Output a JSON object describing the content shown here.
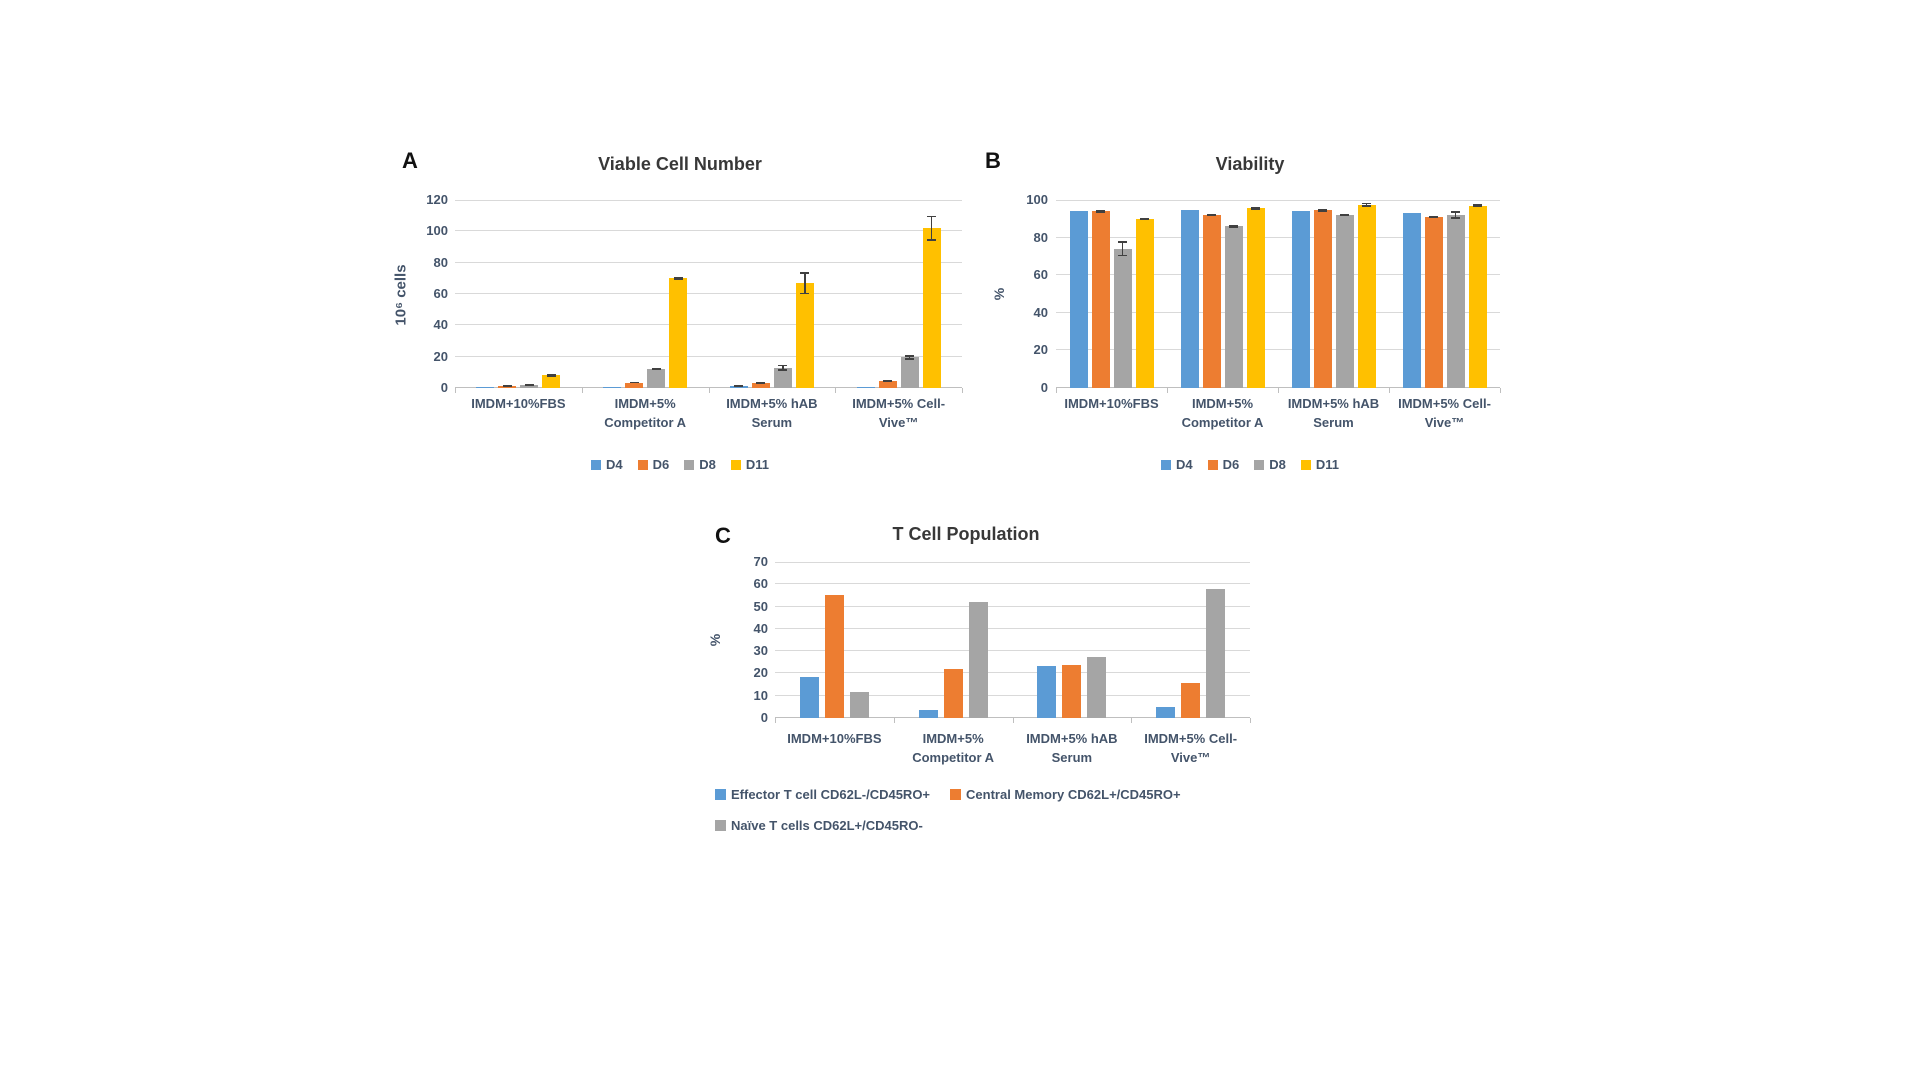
{
  "figure": {
    "background": "#ffffff",
    "palette": {
      "d4_blue": "#5B9BD5",
      "d6_orange": "#ED7D31",
      "d8_gray": "#A5A5A5",
      "d11_yellow": "#FFC000",
      "gridline": "#D9D9D9",
      "axis_line": "#BFBFBF",
      "axis_text": "#44546A",
      "title_text": "#383838",
      "error_bar": "#404040"
    }
  },
  "chart_data": [
    {
      "type": "bar",
      "panel_label": "A",
      "title": "Viable Cell Number",
      "ylabel": "10⁶ cells",
      "xlabel": "",
      "ylim": [
        0,
        120
      ],
      "ytick_step": 20,
      "yticks": [
        0,
        20,
        40,
        60,
        80,
        100,
        120
      ],
      "grid": "horizontal",
      "legend_position": "bottom-center",
      "legend_items_per_row": 4,
      "categories": [
        "IMDM+10%FBS",
        "IMDM+5% Competitor A",
        "IMDM+5% hAB Serum",
        "IMDM+5% Cell-Vive™"
      ],
      "series": [
        {
          "name": "D4",
          "color": "#5B9BD5",
          "values": [
            0.8,
            0.9,
            1.2,
            0.8
          ],
          "errors": [
            0,
            0,
            0.3,
            0
          ]
        },
        {
          "name": "D6",
          "color": "#ED7D31",
          "values": [
            1.2,
            3.5,
            3,
            4.5
          ],
          "errors": [
            0.4,
            0.4,
            0.4,
            0.5
          ]
        },
        {
          "name": "D8",
          "color": "#A5A5A5",
          "values": [
            2,
            12,
            13,
            19.5
          ],
          "errors": [
            0.4,
            0.6,
            2,
            1.5
          ]
        },
        {
          "name": "D11",
          "color": "#FFC000",
          "values": [
            8,
            70,
            67,
            102
          ],
          "errors": [
            0.8,
            1,
            7,
            8
          ]
        }
      ]
    },
    {
      "type": "bar",
      "panel_label": "B",
      "title": "Viability",
      "ylabel": "%",
      "xlabel": "",
      "ylim": [
        0,
        100
      ],
      "ytick_step": 20,
      "yticks": [
        0,
        20,
        40,
        60,
        80,
        100
      ],
      "grid": "horizontal",
      "legend_position": "bottom-center",
      "legend_items_per_row": 4,
      "categories": [
        "IMDM+10%FBS",
        "IMDM+5% Competitor A",
        "IMDM+5% hAB Serum",
        "IMDM+5% Cell-Vive™"
      ],
      "series": [
        {
          "name": "D4",
          "color": "#5B9BD5",
          "values": [
            94,
            94.5,
            94,
            93
          ],
          "errors": [
            0,
            0,
            0,
            0
          ]
        },
        {
          "name": "D6",
          "color": "#ED7D31",
          "values": [
            94,
            92,
            94.5,
            91
          ],
          "errors": [
            0.7,
            0.7,
            0.7,
            0.7
          ]
        },
        {
          "name": "D8",
          "color": "#A5A5A5",
          "values": [
            74,
            86,
            92,
            92
          ],
          "errors": [
            4,
            0.7,
            0.7,
            2
          ]
        },
        {
          "name": "D11",
          "color": "#FFC000",
          "values": [
            90,
            95.5,
            97.5,
            97
          ],
          "errors": [
            0.7,
            0.7,
            1,
            0.7
          ]
        }
      ]
    },
    {
      "type": "bar",
      "panel_label": "C",
      "title": "T Cell Population",
      "ylabel": "%",
      "xlabel": "",
      "ylim": [
        0,
        70
      ],
      "ytick_step": 10,
      "yticks": [
        0,
        10,
        20,
        30,
        40,
        50,
        60,
        70
      ],
      "grid": "horizontal",
      "legend_position": "bottom-left",
      "legend_items_per_row": 2,
      "categories": [
        "IMDM+10%FBS",
        "IMDM+5% Competitor A",
        "IMDM+5% hAB Serum",
        "IMDM+5% Cell-Vive™"
      ],
      "series": [
        {
          "name": "Effector T cell CD62L-/CD45RO+",
          "color": "#5B9BD5",
          "values": [
            18.5,
            3.5,
            23.5,
            5
          ],
          "errors": [
            0,
            0,
            0,
            0
          ]
        },
        {
          "name": "Central Memory CD62L+/CD45RO+",
          "color": "#ED7D31",
          "values": [
            55,
            22,
            24,
            15.5
          ],
          "errors": [
            0,
            0,
            0,
            0
          ]
        },
        {
          "name": "Naïve T cells CD62L+/CD45RO-",
          "color": "#A5A5A5",
          "values": [
            11.5,
            52,
            27.5,
            58
          ],
          "errors": [
            0,
            0,
            0,
            0
          ]
        }
      ]
    }
  ]
}
